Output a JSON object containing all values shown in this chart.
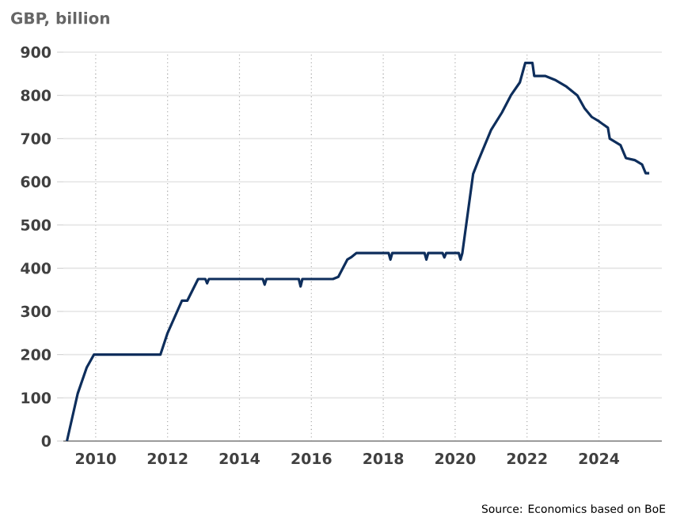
{
  "chart_data": {
    "type": "line",
    "ylabel": "GBP, billion",
    "x": [
      2009.2,
      2009.5,
      2009.75,
      2009.95,
      2011.8,
      2012.0,
      2012.4,
      2012.55,
      2012.85,
      2013.05,
      2013.1,
      2013.15,
      2014.65,
      2014.7,
      2014.75,
      2015.65,
      2015.7,
      2015.75,
      2016.6,
      2016.75,
      2017.0,
      2017.1,
      2017.25,
      2018.15,
      2018.2,
      2018.25,
      2019.15,
      2019.2,
      2019.25,
      2019.65,
      2019.7,
      2019.75,
      2020.1,
      2020.15,
      2020.2,
      2020.5,
      2020.65,
      2021.0,
      2021.3,
      2021.55,
      2021.8,
      2021.95,
      2022.15,
      2022.2,
      2022.5,
      2022.8,
      2023.1,
      2023.4,
      2023.6,
      2023.8,
      2024.0,
      2024.25,
      2024.3,
      2024.6,
      2024.75,
      2025.0,
      2025.2,
      2025.3,
      2025.4
    ],
    "series": [
      {
        "color": "#0e2e5c",
        "values": [
          0,
          110,
          170,
          200,
          200,
          250,
          325,
          325,
          375,
          375,
          365,
          375,
          375,
          362,
          375,
          375,
          358,
          375,
          375,
          380,
          420,
          425,
          435,
          435,
          420,
          435,
          435,
          420,
          435,
          435,
          425,
          435,
          435,
          420,
          435,
          618,
          650,
          720,
          760,
          800,
          830,
          875,
          875,
          845,
          845,
          835,
          820,
          800,
          770,
          750,
          740,
          725,
          700,
          685,
          655,
          650,
          640,
          620,
          620
        ]
      }
    ],
    "xlim": [
      2009.1,
      2025.75
    ],
    "xticks": [
      2010,
      2012,
      2014,
      2016,
      2018,
      2020,
      2022,
      2024
    ],
    "ylim": [
      0,
      900
    ],
    "yticks": [
      0,
      100,
      200,
      300,
      400,
      500,
      600,
      700,
      800,
      900
    ],
    "grid": true,
    "marker": "none",
    "line_style": "solid",
    "annotations": [
      "Source: Economics based on BoE"
    ]
  }
}
